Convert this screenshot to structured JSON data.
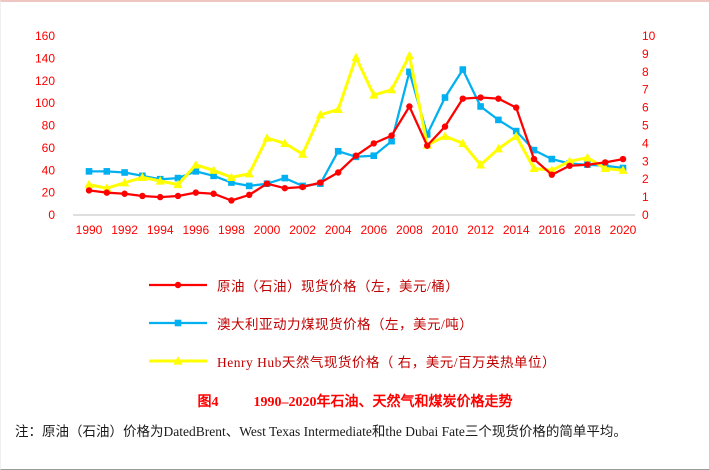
{
  "page": {
    "title_label": "图4",
    "title_text": "1990–2020年石油、天然气和煤炭价格走势",
    "note": "注：原油（石油）价格为DatedBrent、West Texas Intermediate和the Dubai Fate三个现货价格的简单平均。"
  },
  "colors": {
    "axis_text": "#ff0000",
    "axis_line": "#bfbfbf",
    "title": "#ff0000",
    "legend_text": "#c00000"
  },
  "chart_data": {
    "type": "line",
    "title": "图4 1990–2020年石油、天然气和煤炭价格走势",
    "grid": false,
    "legend_position": "bottom",
    "x": [
      1990,
      1991,
      1992,
      1993,
      1994,
      1995,
      1996,
      1997,
      1998,
      1999,
      2000,
      2001,
      2002,
      2003,
      2004,
      2005,
      2006,
      2007,
      2008,
      2009,
      2010,
      2011,
      2012,
      2013,
      2014,
      2015,
      2016,
      2017,
      2018,
      2019,
      2020
    ],
    "x_ticks": [
      1990,
      1992,
      1994,
      1996,
      1998,
      2000,
      2002,
      2004,
      2006,
      2008,
      2010,
      2012,
      2014,
      2016,
      2018,
      2020
    ],
    "left_axis": {
      "min": 0,
      "max": 160,
      "step": 20,
      "ticks": [
        0,
        20,
        40,
        60,
        80,
        100,
        120,
        140,
        160
      ]
    },
    "right_axis": {
      "min": 0,
      "max": 10,
      "step": 1,
      "ticks": [
        0,
        1,
        2,
        3,
        4,
        5,
        6,
        7,
        8,
        9,
        10
      ]
    },
    "series": [
      {
        "name": "crude-oil",
        "label": "原油（石油）现货价格（左，美元/桶）",
        "color": "#ff0000",
        "marker": "circle",
        "axis": "left",
        "values": [
          22,
          20,
          19,
          17,
          16,
          17,
          20,
          19,
          13,
          18,
          28,
          24,
          25,
          29,
          38,
          53,
          64,
          71,
          97,
          62,
          79,
          104,
          105,
          104,
          96,
          50,
          36,
          44,
          45,
          47,
          50
        ]
      },
      {
        "name": "australian-coal",
        "label": "澳大利亚动力煤现货价格（左，美元/吨）",
        "color": "#00b0f0",
        "marker": "square",
        "axis": "left",
        "values": [
          39,
          39,
          38,
          35,
          32,
          33,
          39,
          35,
          29,
          26,
          28,
          33,
          26,
          28,
          57,
          52,
          53,
          66,
          128,
          72,
          105,
          130,
          97,
          85,
          75,
          58,
          50,
          46,
          45,
          44,
          42
        ]
      },
      {
        "name": "henry-hub-gas",
        "label": "Henry Hub天然气现货价格（ 右，美元/百万英热单位）",
        "color": "#ffff00",
        "marker": "triangle",
        "axis": "right",
        "values": [
          1.7,
          1.5,
          1.8,
          2.1,
          1.9,
          1.7,
          2.8,
          2.5,
          2.1,
          2.3,
          4.3,
          4.0,
          3.4,
          5.6,
          5.9,
          8.8,
          6.7,
          7.0,
          8.9,
          3.9,
          4.4,
          4.0,
          2.8,
          3.7,
          4.4,
          2.6,
          2.5,
          3.0,
          3.2,
          2.6,
          2.5
        ]
      }
    ]
  }
}
